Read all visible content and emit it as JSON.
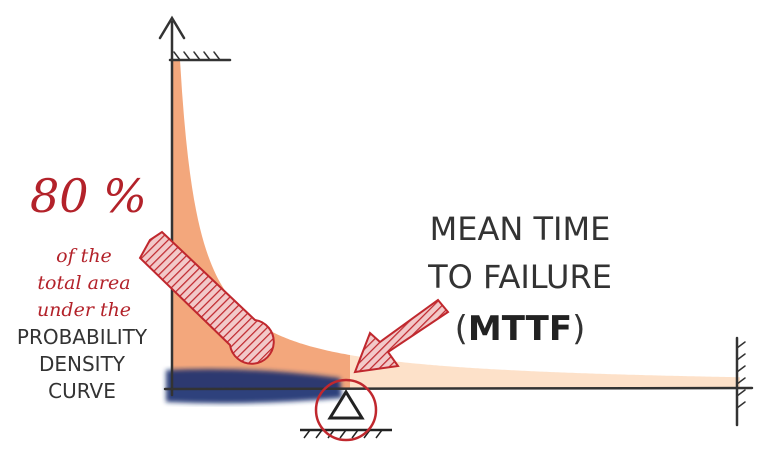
{
  "left_note": {
    "percent": "80 %",
    "lines": [
      "of the",
      "total area",
      "under the"
    ],
    "caps_lines": [
      "PROBABILITY",
      "DENSITY",
      "CURVE"
    ]
  },
  "right_note": {
    "lines": [
      "MEAN TIME",
      "TO FAILURE"
    ],
    "open": "(",
    "abbr": "MTTF",
    "close": ")"
  }
}
